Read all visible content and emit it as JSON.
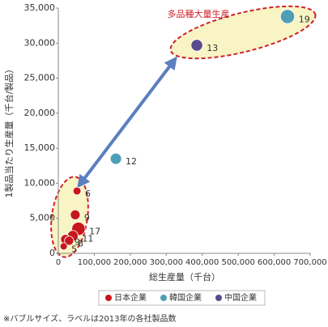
{
  "chart_data": {
    "type": "bubble",
    "xlabel": "総生産量（千台）",
    "ylabel": "1製品当たり生産量（千台/製品）",
    "annotation": "多品種大量生産",
    "note": "※バブルサイズ、ラベルは2013年の各社製品数",
    "xlim": [
      0,
      700000
    ],
    "ylim": [
      0,
      35000
    ],
    "xticks": [
      0,
      {
        "value": 100000,
        "label": "100,000"
      },
      {
        "value": 200000,
        "label": "200,000"
      },
      {
        "value": 300000,
        "label": "300,000"
      },
      {
        "value": 400000,
        "label": "400,000"
      },
      {
        "value": 500000,
        "label": "500,000"
      },
      {
        "value": 600000,
        "label": "600,000"
      },
      {
        "value": 700000,
        "label": "700,000"
      }
    ],
    "yticks": [
      0,
      {
        "value": 5000,
        "label": "5,000"
      },
      {
        "value": 10000,
        "label": "10,000"
      },
      {
        "value": 15000,
        "label": "15,000"
      },
      {
        "value": 20000,
        "label": "20,000"
      },
      {
        "value": 25000,
        "label": "25,000"
      },
      {
        "value": 30000,
        "label": "30,000"
      },
      {
        "value": 35000,
        "label": "35,000"
      }
    ],
    "grid": false,
    "legend": "bottom",
    "series": [
      {
        "name": "日本企業",
        "color": "#c8161d",
        "x": [
          52000,
          47000,
          56000,
          40000,
          20000,
          30000,
          15000
        ],
        "values": [
          8900,
          5500,
          3500,
          2500,
          2000,
          1800,
          1000
        ],
        "sizes": [
          6,
          9,
          17,
          11,
          9,
          8,
          5
        ]
      },
      {
        "name": "韓国企業",
        "color": "#4e9fb5",
        "x": [
          160000,
          637000
        ],
        "values": [
          13500,
          33800
        ],
        "sizes": [
          12,
          19
        ]
      },
      {
        "name": "中国企業",
        "color": "#5b4b8c",
        "x": [
          385000
        ],
        "values": [
          29700
        ],
        "sizes": [
          13
        ]
      }
    ]
  }
}
